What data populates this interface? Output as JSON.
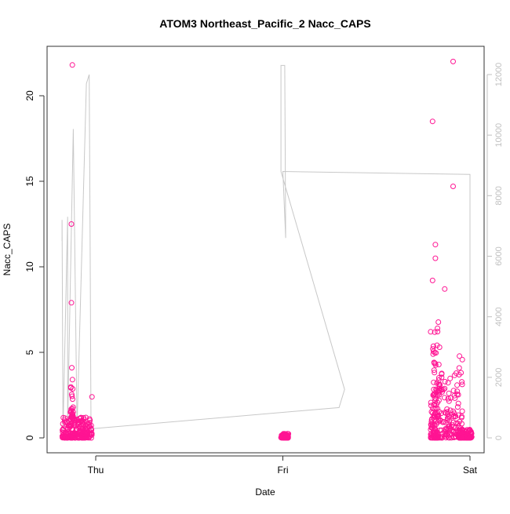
{
  "chart_data": {
    "type": "scatter",
    "title": "ATOM3 Northeast_Pacific_2 Nacc_CAPS",
    "xlabel": "Date",
    "ylabel": "Nacc_CAPS",
    "x_ticks": [
      "Thu",
      "Fri",
      "Sat"
    ],
    "y_ticks": [
      "0",
      "5",
      "10",
      "15",
      "20"
    ],
    "y2_ticks": [
      "0",
      "2000",
      "4000",
      "6000",
      "8000",
      "10000",
      "12000"
    ],
    "ylim": [
      0,
      22
    ],
    "y2lim": [
      0,
      12500
    ],
    "xlim_days": [
      -0.23,
      2.05
    ],
    "grid": false,
    "colors": {
      "points": "#ff1493",
      "secondary_line": "#c8c8c8",
      "axis": "#333333",
      "secondary_axis": "#c0c0c0"
    },
    "notable_points": [
      {
        "x": "Thu",
        "offset_days": -0.125,
        "y": 21.8
      },
      {
        "x": "Thu",
        "offset_days": -0.13,
        "y": 12.5
      },
      {
        "x": "Thu",
        "offset_days": -0.13,
        "y": 7.9
      },
      {
        "x": "Thu",
        "offset_days": -0.128,
        "y": 4.1
      },
      {
        "x": "Thu",
        "offset_days": -0.02,
        "y": 2.4
      },
      {
        "x": "Sat",
        "offset_days": -0.2,
        "y": 18.5
      },
      {
        "x": "Sat",
        "offset_days": -0.09,
        "y": 22.0
      },
      {
        "x": "Sat",
        "offset_days": -0.09,
        "y": 14.7
      },
      {
        "x": "Sat",
        "offset_days": -0.185,
        "y": 11.3
      },
      {
        "x": "Sat",
        "offset_days": -0.185,
        "y": 10.5
      },
      {
        "x": "Sat",
        "offset_days": -0.2,
        "y": 9.2
      },
      {
        "x": "Sat",
        "offset_days": -0.135,
        "y": 8.7
      },
      {
        "x": "Sat",
        "offset_days": -0.21,
        "y": 6.2
      }
    ],
    "clusters": [
      {
        "day_start": -0.18,
        "day_end": -0.02,
        "y_low": 0.0,
        "y_high": 1.2,
        "n": 220
      },
      {
        "day_start": -0.135,
        "day_end": -0.12,
        "y_low": 1.2,
        "y_high": 3.8,
        "n": 25
      },
      {
        "day_start": 0.99,
        "day_end": 1.03,
        "y_low": 0.0,
        "y_high": 0.25,
        "n": 60
      },
      {
        "day_start": 1.79,
        "day_end": 1.83,
        "y_low": 0.0,
        "y_high": 2.5,
        "n": 90
      },
      {
        "day_start": 1.8,
        "day_end": 1.84,
        "y_low": 2.5,
        "y_high": 7.2,
        "n": 40
      },
      {
        "day_start": 1.83,
        "day_end": 1.92,
        "y_low": 0.0,
        "y_high": 4.0,
        "n": 90
      },
      {
        "day_start": 1.92,
        "day_end": 1.96,
        "y_low": 0.0,
        "y_high": 5.2,
        "n": 45
      },
      {
        "day_start": 1.94,
        "day_end": 2.01,
        "y_low": 0.0,
        "y_high": 0.5,
        "n": 110
      }
    ],
    "secondary_series": [
      {
        "day": -0.18,
        "y2": 6500
      },
      {
        "day": -0.18,
        "y2": 7200
      },
      {
        "day": -0.175,
        "y2": 200
      },
      {
        "day": -0.15,
        "y2": 7300
      },
      {
        "day": -0.15,
        "y2": 400
      },
      {
        "day": -0.12,
        "y2": 10200
      },
      {
        "day": -0.1,
        "y2": 300
      },
      {
        "day": -0.05,
        "y2": 11700
      },
      {
        "day": -0.035,
        "y2": 12000
      },
      {
        "day": -0.03,
        "y2": 6800
      },
      {
        "day": -0.025,
        "y2": 300
      },
      {
        "day": 1.3,
        "y2": 1000
      },
      {
        "day": 1.33,
        "y2": 1600
      },
      {
        "day": 0.99,
        "y2": 8800
      },
      {
        "day": 0.99,
        "y2": 12300
      },
      {
        "day": 1.01,
        "y2": 12300
      },
      {
        "day": 1.015,
        "y2": 6600
      },
      {
        "day": 1.0,
        "y2": 8800
      },
      {
        "day": 2.0,
        "y2": 8700
      },
      {
        "day": 2.0,
        "y2": 200
      }
    ]
  }
}
